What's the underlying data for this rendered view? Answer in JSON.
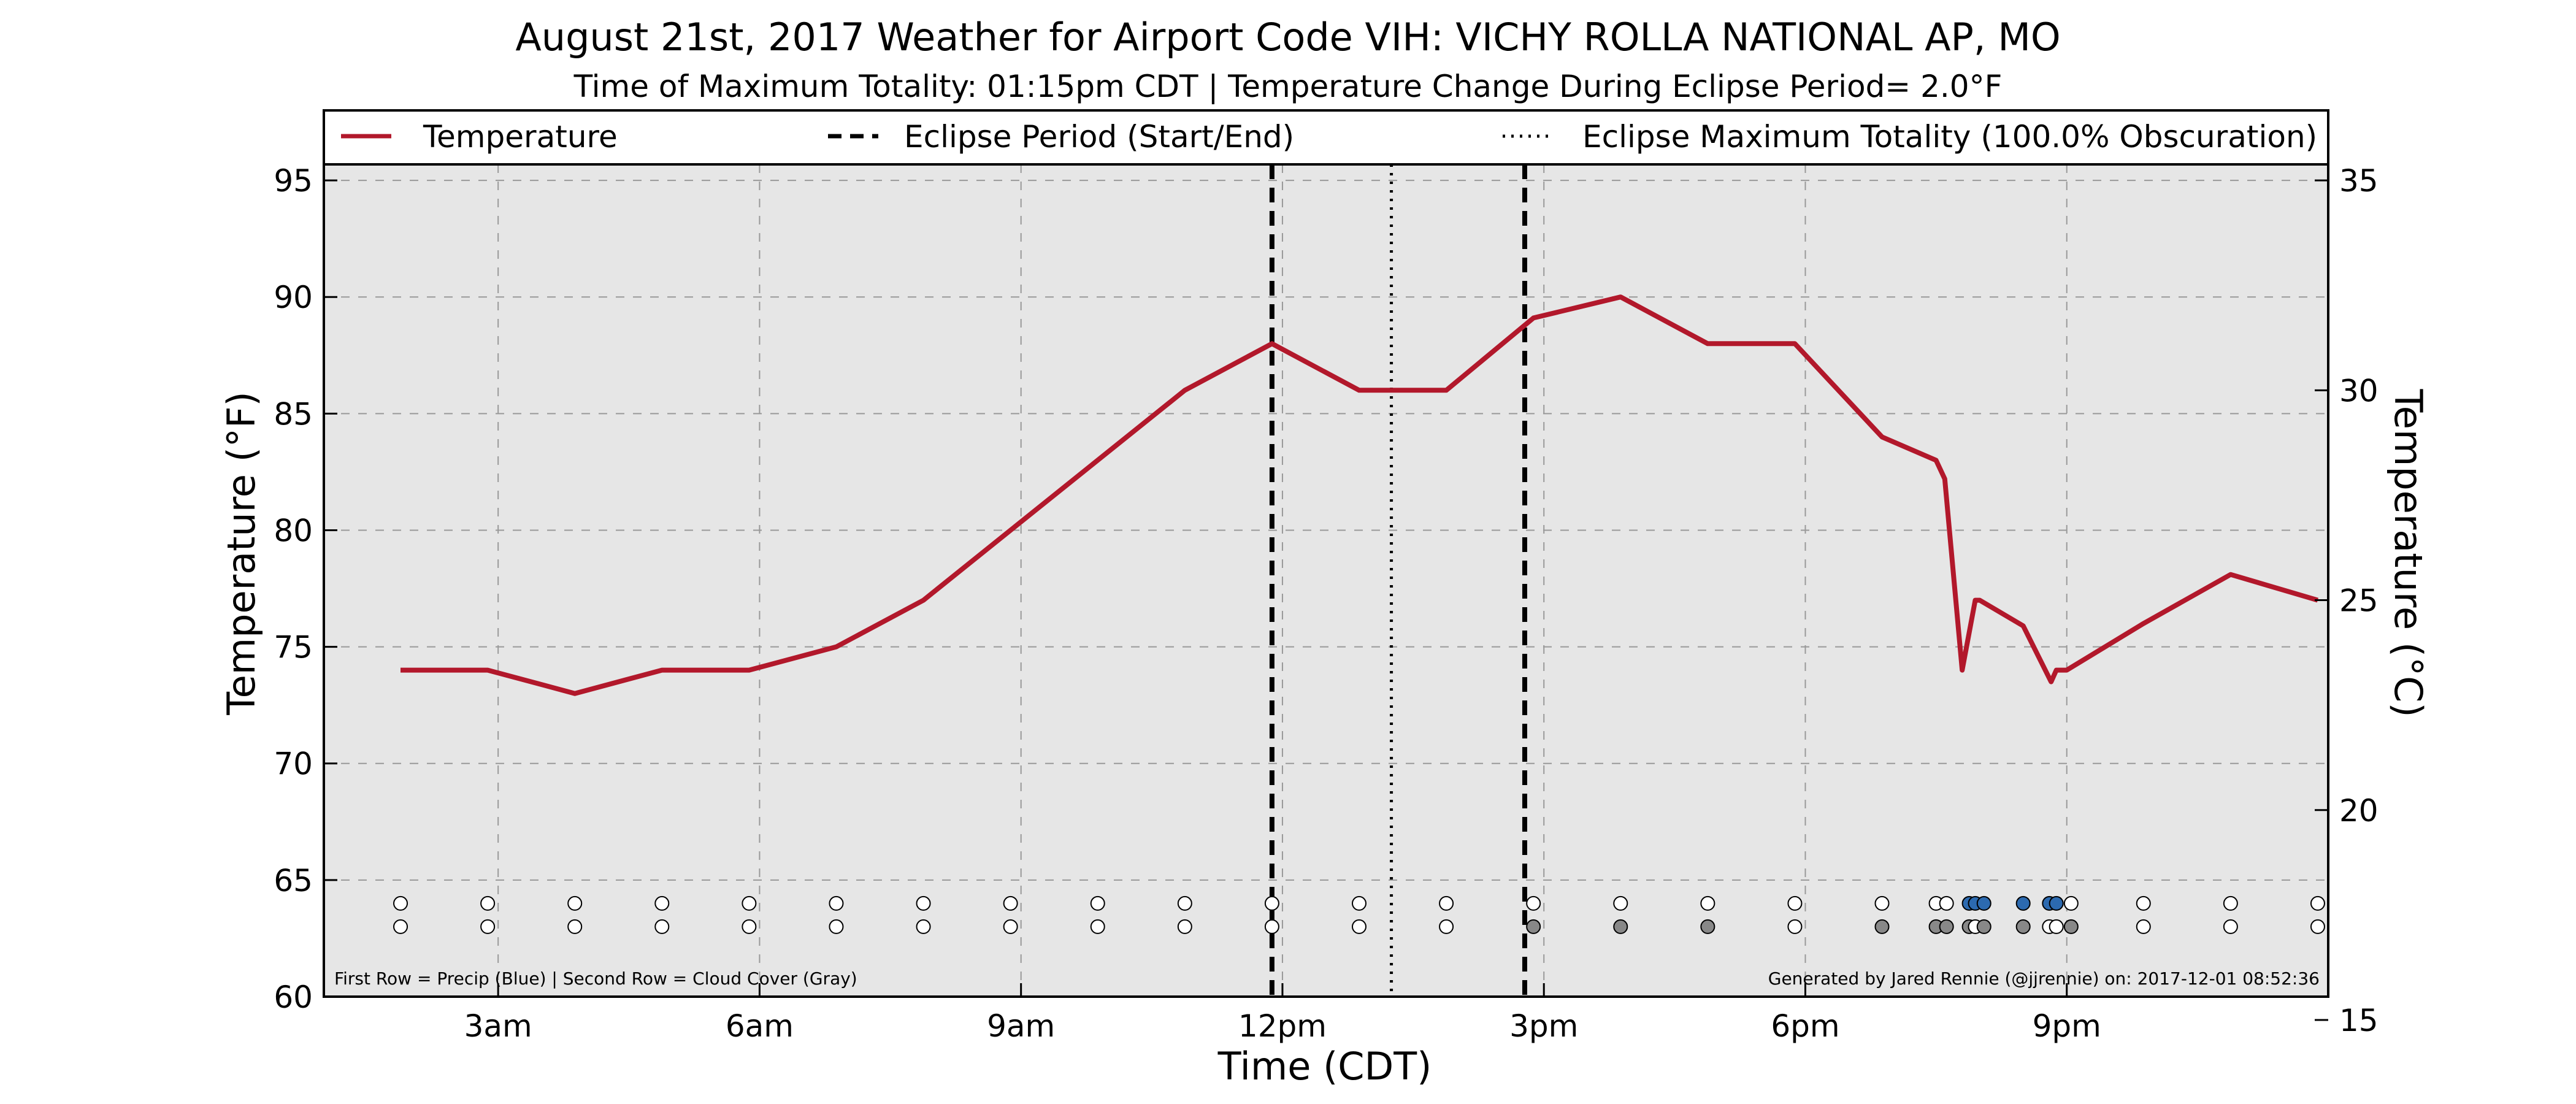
{
  "chart_data": {
    "type": "line",
    "title": "August 21st, 2017 Weather for Airport Code VIH: VICHY ROLLA NATIONAL AP, MO",
    "subtitle": "Time of Maximum Totality: 01:15pm CDT | Temperature Change During Eclipse Period= 2.0°F",
    "xlabel": "Time (CDT)",
    "ylabel_left": "Temperature (°F)",
    "ylabel_right": "Temperature (°C)",
    "xlim_hours": [
      1.0,
      24.0
    ],
    "ylim_f": [
      60,
      98
    ],
    "x_ticks": [
      {
        "hour": 3,
        "label": "3am"
      },
      {
        "hour": 6,
        "label": "6am"
      },
      {
        "hour": 9,
        "label": "9am"
      },
      {
        "hour": 12,
        "label": "12pm"
      },
      {
        "hour": 15,
        "label": "3pm"
      },
      {
        "hour": 18,
        "label": "6pm"
      },
      {
        "hour": 21,
        "label": "9pm"
      }
    ],
    "y_ticks_f": [
      60,
      65,
      70,
      75,
      80,
      85,
      90,
      95
    ],
    "y_ticks_c": [
      15,
      20,
      25,
      30,
      35
    ],
    "grid": true,
    "legend_position": "top",
    "legend": [
      {
        "label": "Temperature",
        "style": "solid"
      },
      {
        "label": "Eclipse Period (Start/End)",
        "style": "dashed"
      },
      {
        "label": "Eclipse Maximum Totality (100.0% Obscuration)",
        "style": "dotted"
      }
    ],
    "eclipse_start_hour": 11.88,
    "eclipse_end_hour": 14.78,
    "eclipse_max_hour": 13.25,
    "series": [
      {
        "name": "Temperature",
        "color": "#b2182b",
        "points": [
          [
            1.88,
            74
          ],
          [
            2.88,
            74
          ],
          [
            3.88,
            73
          ],
          [
            4.88,
            74
          ],
          [
            5.88,
            74
          ],
          [
            6.88,
            75
          ],
          [
            7.88,
            77
          ],
          [
            8.88,
            80
          ],
          [
            9.88,
            83
          ],
          [
            10.88,
            86
          ],
          [
            11.88,
            88
          ],
          [
            12.88,
            86
          ],
          [
            13.88,
            86
          ],
          [
            14.88,
            89.1
          ],
          [
            15.88,
            90
          ],
          [
            16.88,
            88
          ],
          [
            17.88,
            88
          ],
          [
            18.88,
            84
          ],
          [
            19.5,
            83
          ],
          [
            19.6,
            82.2
          ],
          [
            19.8,
            74
          ],
          [
            19.95,
            77
          ],
          [
            20.0,
            77
          ],
          [
            20.5,
            75.9
          ],
          [
            20.82,
            73.5
          ],
          [
            20.88,
            74
          ],
          [
            21.0,
            74
          ],
          [
            21.88,
            76
          ],
          [
            22.88,
            78.1
          ],
          [
            23.88,
            77
          ]
        ]
      }
    ],
    "indicator_rows": {
      "precip_color": "#2c6ab0",
      "cloud_color": "#888888",
      "empty_color": "#ffffff",
      "precip_y_f": 64,
      "cloud_y_f": 63,
      "points": [
        {
          "hour": 1.88,
          "precip": false,
          "cloud": false
        },
        {
          "hour": 2.88,
          "precip": false,
          "cloud": false
        },
        {
          "hour": 3.88,
          "precip": false,
          "cloud": false
        },
        {
          "hour": 4.88,
          "precip": false,
          "cloud": false
        },
        {
          "hour": 5.88,
          "precip": false,
          "cloud": false
        },
        {
          "hour": 6.88,
          "precip": false,
          "cloud": false
        },
        {
          "hour": 7.88,
          "precip": false,
          "cloud": false
        },
        {
          "hour": 8.88,
          "precip": false,
          "cloud": false
        },
        {
          "hour": 9.88,
          "precip": false,
          "cloud": false
        },
        {
          "hour": 10.88,
          "precip": false,
          "cloud": false
        },
        {
          "hour": 11.88,
          "precip": false,
          "cloud": false
        },
        {
          "hour": 12.88,
          "precip": false,
          "cloud": false
        },
        {
          "hour": 13.88,
          "precip": false,
          "cloud": false
        },
        {
          "hour": 14.88,
          "precip": false,
          "cloud": true
        },
        {
          "hour": 15.88,
          "precip": false,
          "cloud": true
        },
        {
          "hour": 16.88,
          "precip": false,
          "cloud": true
        },
        {
          "hour": 17.88,
          "precip": false,
          "cloud": false
        },
        {
          "hour": 18.88,
          "precip": false,
          "cloud": true
        },
        {
          "hour": 19.5,
          "precip": false,
          "cloud": true
        },
        {
          "hour": 19.62,
          "precip": false,
          "cloud": true
        },
        {
          "hour": 19.88,
          "precip": true,
          "cloud": true
        },
        {
          "hour": 19.95,
          "precip": true,
          "cloud": false
        },
        {
          "hour": 20.05,
          "precip": true,
          "cloud": true
        },
        {
          "hour": 20.5,
          "precip": true,
          "cloud": true
        },
        {
          "hour": 20.8,
          "precip": true,
          "cloud": false
        },
        {
          "hour": 20.88,
          "precip": true,
          "cloud": false
        },
        {
          "hour": 21.05,
          "precip": false,
          "cloud": true
        },
        {
          "hour": 21.88,
          "precip": false,
          "cloud": false
        },
        {
          "hour": 22.88,
          "precip": false,
          "cloud": false
        },
        {
          "hour": 23.88,
          "precip": false,
          "cloud": false
        }
      ]
    },
    "footnote_left": "First Row = Precip (Blue) | Second Row = Cloud Cover (Gray)",
    "footnote_right": "Generated by Jared Rennie (@jjrennie) on: 2017-12-01 08:52:36"
  }
}
